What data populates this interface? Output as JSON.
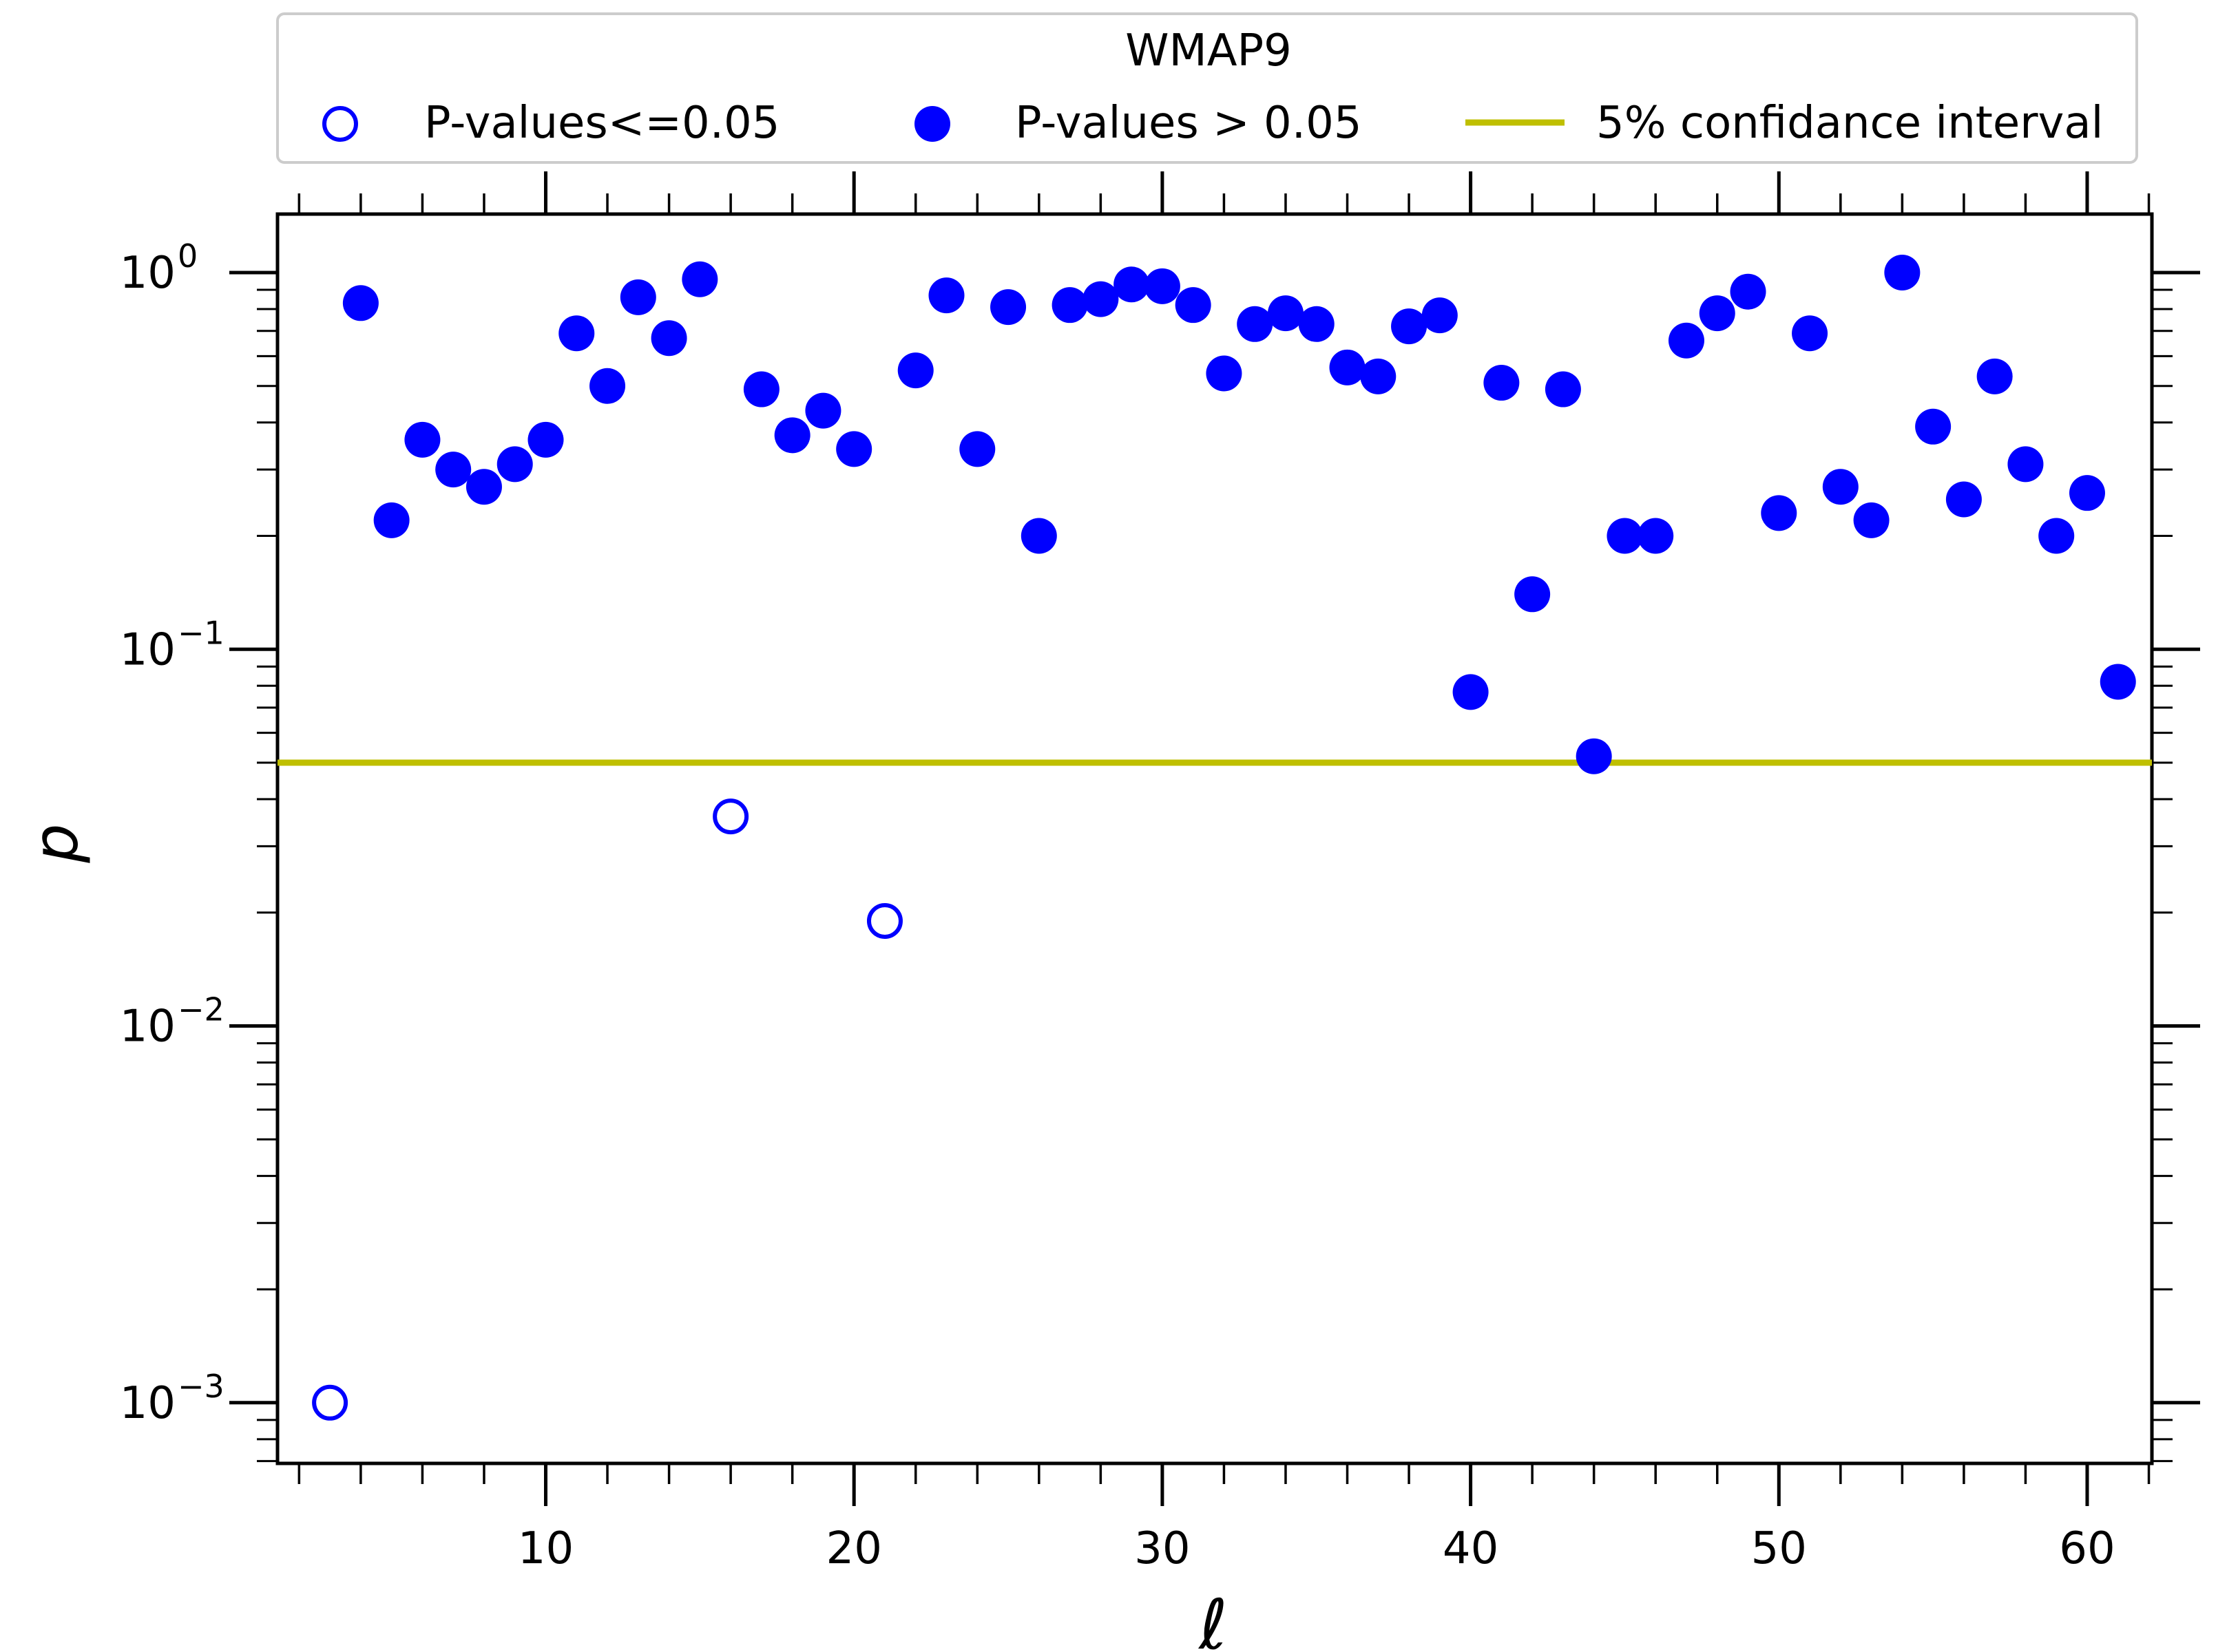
{
  "chart_data": {
    "type": "scatter",
    "title": "",
    "xlabel": "ℓ",
    "ylabel": "p",
    "yscale": "log",
    "xlim": [
      1.3,
      62.1
    ],
    "ylim": [
      0.00069,
      1.43
    ],
    "x_ticks": [
      10,
      20,
      30,
      40,
      50,
      60
    ],
    "y_ticks": [
      {
        "value": 0.001,
        "base": "10",
        "exp": "−3"
      },
      {
        "value": 0.01,
        "base": "10",
        "exp": "−2"
      },
      {
        "value": 0.1,
        "base": "10",
        "exp": "−1"
      },
      {
        "value": 1,
        "base": "10",
        "exp": "0"
      }
    ],
    "legend": {
      "title": "WMAP9",
      "location": "top-center, above plot",
      "entries": [
        {
          "label": "P-values<=0.05",
          "marker": "open-circle"
        },
        {
          "label": "P-values > 0.05",
          "marker": "filled-circle"
        },
        {
          "label": "5% confidance interval",
          "marker": "line"
        }
      ]
    },
    "threshold": {
      "name": "5% confidance interval",
      "value": 0.05,
      "color": "#bfbf00"
    },
    "series": [
      {
        "name": "P-values<=0.05",
        "style": "open",
        "color": "#0000ff",
        "points": [
          [
            3,
            0.001
          ],
          [
            16,
            0.036
          ],
          [
            21,
            0.019
          ]
        ]
      },
      {
        "name": "P-values > 0.05",
        "style": "filled",
        "color": "#0000ff",
        "points": [
          [
            4,
            0.83
          ],
          [
            5,
            0.22
          ],
          [
            6,
            0.36
          ],
          [
            7,
            0.3
          ],
          [
            8,
            0.27
          ],
          [
            9,
            0.31
          ],
          [
            10,
            0.36
          ],
          [
            11,
            0.69
          ],
          [
            12,
            0.5
          ],
          [
            13,
            0.86
          ],
          [
            14,
            0.67
          ],
          [
            15,
            0.96
          ],
          [
            17,
            0.49
          ],
          [
            18,
            0.37
          ],
          [
            19,
            0.43
          ],
          [
            20,
            0.34
          ],
          [
            22,
            0.55
          ],
          [
            23,
            0.87
          ],
          [
            24,
            0.34
          ],
          [
            25,
            0.81
          ],
          [
            26,
            0.2
          ],
          [
            27,
            0.82
          ],
          [
            28,
            0.85
          ],
          [
            29,
            0.93
          ],
          [
            30,
            0.92
          ],
          [
            31,
            0.82
          ],
          [
            32,
            0.54
          ],
          [
            33,
            0.73
          ],
          [
            34,
            0.78
          ],
          [
            35,
            0.73
          ],
          [
            36,
            0.56
          ],
          [
            37,
            0.53
          ],
          [
            38,
            0.72
          ],
          [
            39,
            0.77
          ],
          [
            40,
            0.077
          ],
          [
            41,
            0.51
          ],
          [
            42,
            0.14
          ],
          [
            43,
            0.49
          ],
          [
            44,
            0.052
          ],
          [
            45,
            0.2
          ],
          [
            46,
            0.2
          ],
          [
            47,
            0.66
          ],
          [
            48,
            0.78
          ],
          [
            49,
            0.89
          ],
          [
            50,
            0.23
          ],
          [
            51,
            0.69
          ],
          [
            52,
            0.27
          ],
          [
            53,
            0.22
          ],
          [
            54,
            1.0
          ],
          [
            55,
            0.39
          ],
          [
            56,
            0.25
          ],
          [
            57,
            0.53
          ],
          [
            58,
            0.31
          ],
          [
            59,
            0.2
          ],
          [
            60,
            0.26
          ],
          [
            61,
            0.082
          ]
        ]
      }
    ]
  }
}
